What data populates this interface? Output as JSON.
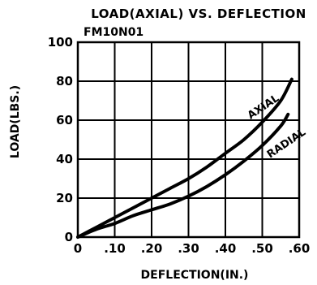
{
  "chart_data": {
    "type": "line",
    "title": "LOAD(AXIAL) VS. DEFLECTION",
    "subtitle": "FM10N01",
    "xlabel": "DEFLECTION(IN.)",
    "ylabel": "LOAD(LBS.)",
    "xlim": [
      0,
      0.6
    ],
    "ylim": [
      0,
      100
    ],
    "x_ticks": [
      0,
      0.1,
      0.2,
      0.3,
      0.4,
      0.5,
      0.6
    ],
    "x_tick_labels": [
      "0",
      ".10",
      ".20",
      ".30",
      ".40",
      ".50",
      ".60"
    ],
    "y_ticks": [
      0,
      20,
      40,
      60,
      80,
      100
    ],
    "y_tick_labels": [
      "0",
      "20",
      "40",
      "60",
      "80",
      "100"
    ],
    "grid": true,
    "series": [
      {
        "name": "AXIAL",
        "x": [
          0,
          0.05,
          0.1,
          0.15,
          0.2,
          0.25,
          0.3,
          0.35,
          0.4,
          0.45,
          0.5,
          0.55,
          0.58
        ],
        "y": [
          0,
          5,
          10,
          15,
          20,
          25,
          30,
          36,
          43,
          50,
          59,
          70,
          81
        ]
      },
      {
        "name": "RADIAL",
        "x": [
          0,
          0.05,
          0.1,
          0.15,
          0.2,
          0.25,
          0.3,
          0.35,
          0.4,
          0.45,
          0.5,
          0.55,
          0.57
        ],
        "y": [
          0,
          4,
          7,
          11,
          14,
          17,
          21,
          26,
          32,
          39,
          47,
          57,
          63
        ]
      }
    ]
  }
}
